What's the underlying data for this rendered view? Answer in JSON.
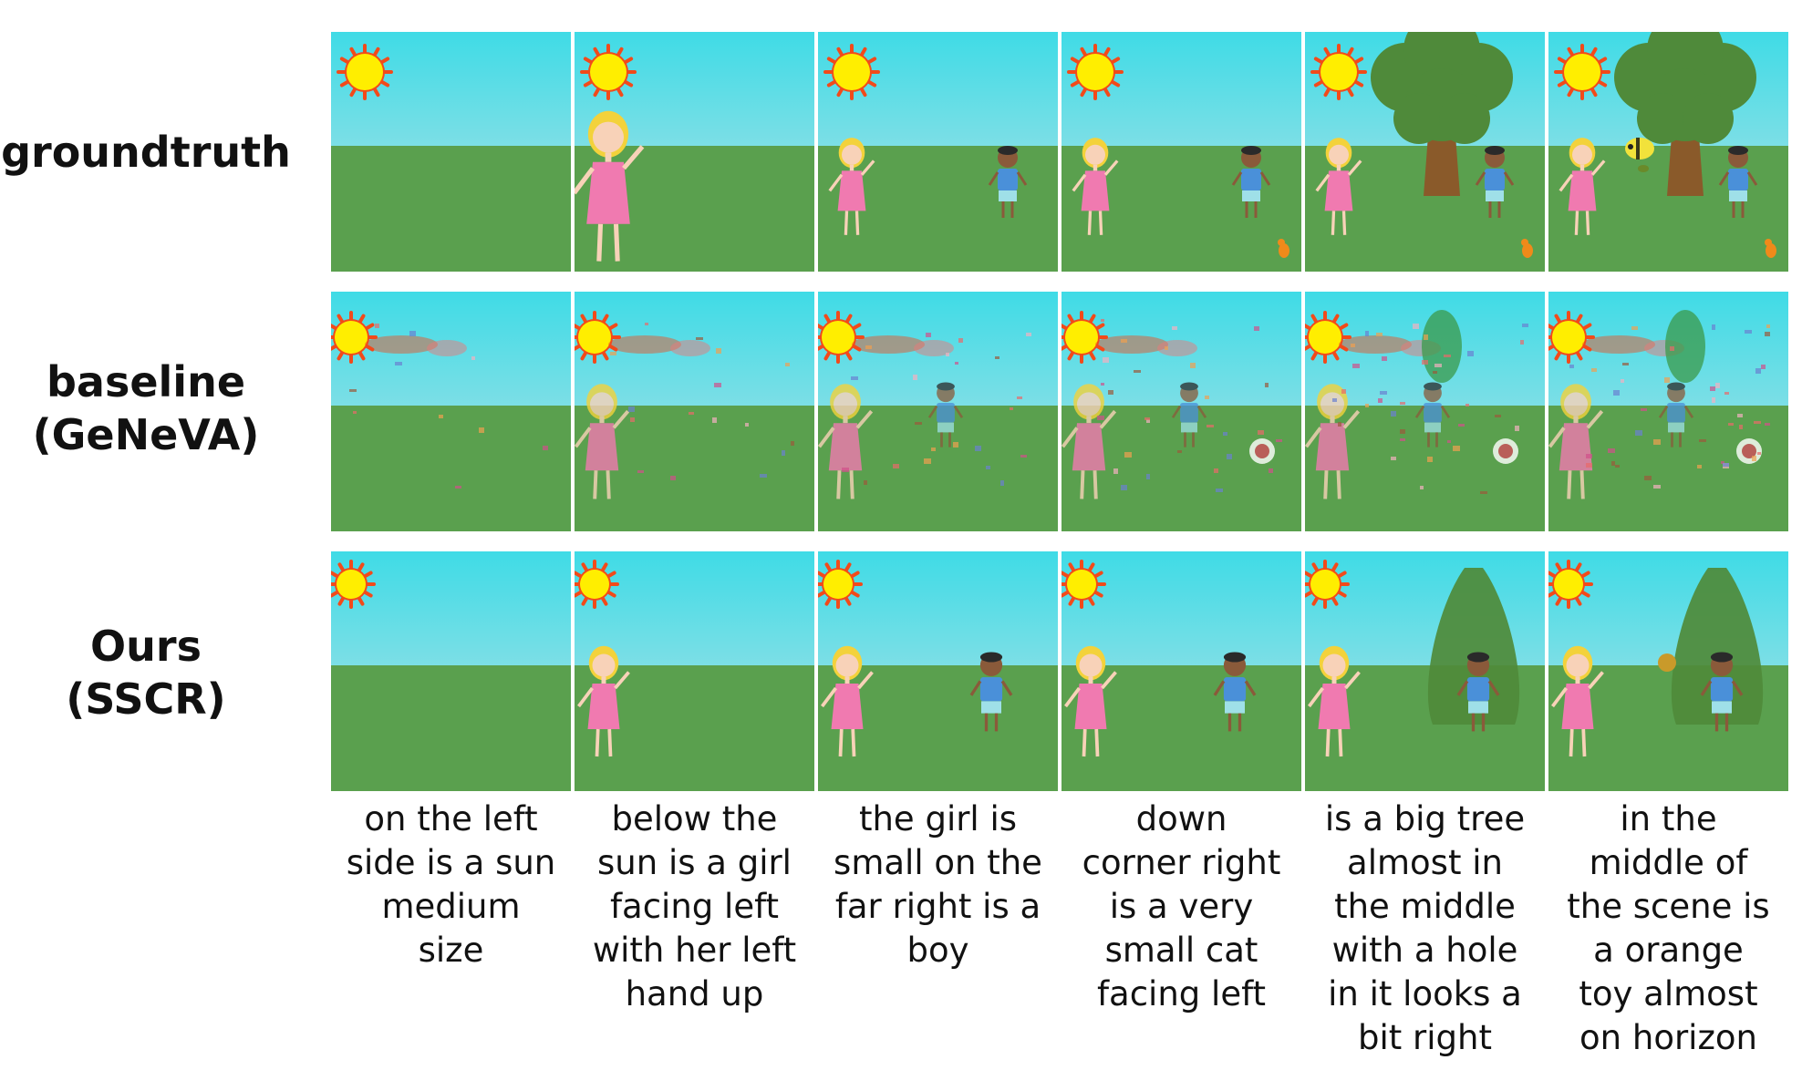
{
  "rows": [
    {
      "label_lines": [
        "groundtruth"
      ]
    },
    {
      "label_lines": [
        "baseline",
        "(GeNeVA)"
      ]
    },
    {
      "label_lines": [
        "Ours",
        "(SSCR)"
      ]
    }
  ],
  "captions": [
    [
      "on the left",
      "side is a sun",
      "medium",
      "size"
    ],
    [
      "below the",
      "sun is a girl",
      "facing left",
      "with her left",
      "hand up"
    ],
    [
      "the girl is",
      "small on the",
      "far right is a",
      "boy"
    ],
    [
      "down",
      "corner right",
      "is a very",
      "small cat",
      "facing left"
    ],
    [
      "is a big tree",
      "almost in",
      "the middle",
      "with a hole",
      "in it looks a",
      "bit right"
    ],
    [
      "in the",
      "middle of",
      "the scene is",
      "a orange",
      "toy almost",
      "on horizon"
    ]
  ],
  "colors": {
    "sky_top": "#3fdbe6",
    "sky_bottom": "#bfe3e6",
    "grass": "#5aa04e",
    "sun": "#ffee00",
    "sun_rays": "#f24a1a",
    "girl_dress": "#f07ab0",
    "boy_shirt": "#4a90d9",
    "tree": "#4f8a3a",
    "trunk": "#8a5a2a"
  }
}
